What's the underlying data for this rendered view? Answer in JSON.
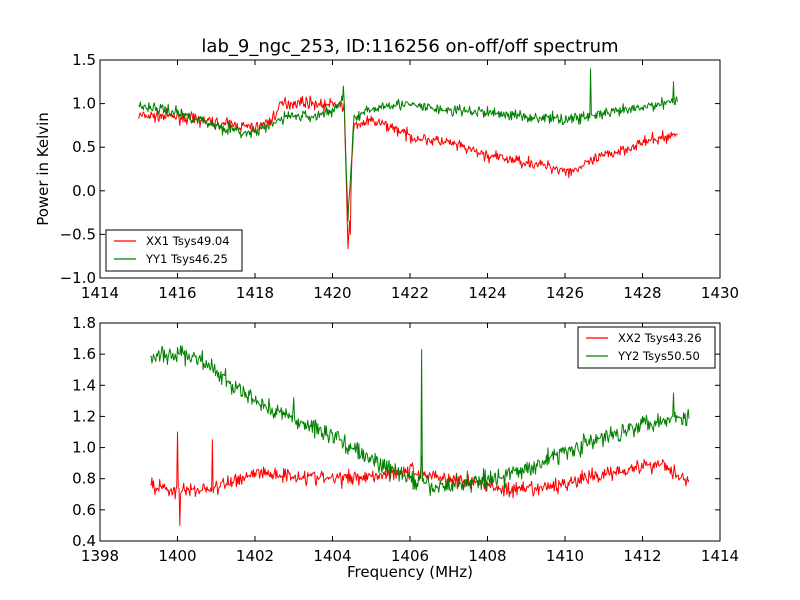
{
  "chart_data": [
    {
      "type": "line",
      "title": "lab_9_ngc_253, ID:116256 on-off/off spectrum",
      "xlabel": "",
      "ylabel": "Power in Kelvin",
      "xlim": [
        1414,
        1430
      ],
      "ylim": [
        -1.0,
        1.5
      ],
      "xticks": [
        1414,
        1416,
        1418,
        1420,
        1422,
        1424,
        1426,
        1428,
        1430
      ],
      "yticks": [
        -1.0,
        -0.5,
        0.0,
        0.5,
        1.0,
        1.5
      ],
      "xtick_labels": [
        "1414",
        "1416",
        "1418",
        "1420",
        "1422",
        "1424",
        "1426",
        "1428",
        "1430"
      ],
      "ytick_labels": [
        "−1.0",
        "−0.5",
        "0.0",
        "0.5",
        "1.0",
        "1.5"
      ],
      "grid": false,
      "legend_position": "bottom-left",
      "x_range": [
        1415.0,
        1428.9
      ],
      "series": [
        {
          "name": "XX1 Tsys49.04",
          "color": "#ff0000",
          "noise": 0.06,
          "anchors": [
            [
              1415.0,
              0.86
            ],
            [
              1416.0,
              0.85
            ],
            [
              1417.0,
              0.78
            ],
            [
              1418.0,
              0.72
            ],
            [
              1418.4,
              0.8
            ],
            [
              1418.7,
              1.0
            ],
            [
              1419.3,
              1.02
            ],
            [
              1419.8,
              0.98
            ],
            [
              1420.15,
              1.0
            ],
            [
              1420.3,
              0.95
            ],
            [
              1420.4,
              -0.65
            ],
            [
              1420.55,
              0.75
            ],
            [
              1421.0,
              0.8
            ],
            [
              1421.6,
              0.72
            ],
            [
              1422.0,
              0.62
            ],
            [
              1423.0,
              0.55
            ],
            [
              1424.0,
              0.4
            ],
            [
              1425.0,
              0.33
            ],
            [
              1426.0,
              0.24
            ],
            [
              1426.3,
              0.25
            ],
            [
              1427.0,
              0.4
            ],
            [
              1428.0,
              0.55
            ],
            [
              1428.9,
              0.65
            ]
          ],
          "spikes": [
            [
              1420.45,
              -0.5
            ],
            [
              1426.1,
              0.15
            ]
          ]
        },
        {
          "name": "YY1 Tsys46.25",
          "color": "#008000",
          "noise": 0.06,
          "anchors": [
            [
              1415.0,
              0.98
            ],
            [
              1416.0,
              0.9
            ],
            [
              1417.0,
              0.75
            ],
            [
              1417.8,
              0.65
            ],
            [
              1418.3,
              0.72
            ],
            [
              1418.8,
              0.86
            ],
            [
              1419.5,
              0.85
            ],
            [
              1420.0,
              0.92
            ],
            [
              1420.3,
              1.05
            ],
            [
              1420.4,
              -0.3
            ],
            [
              1420.55,
              0.82
            ],
            [
              1421.0,
              0.93
            ],
            [
              1421.5,
              1.0
            ],
            [
              1422.0,
              0.98
            ],
            [
              1423.0,
              0.92
            ],
            [
              1424.0,
              0.9
            ],
            [
              1425.0,
              0.85
            ],
            [
              1426.0,
              0.82
            ],
            [
              1427.0,
              0.88
            ],
            [
              1428.0,
              0.95
            ],
            [
              1428.9,
              1.05
            ]
          ],
          "spikes": [
            [
              1420.28,
              1.2
            ],
            [
              1426.65,
              1.4
            ],
            [
              1428.8,
              1.25
            ]
          ]
        }
      ]
    },
    {
      "type": "line",
      "title": "",
      "xlabel": "Frequency (MHz)",
      "ylabel": "",
      "xlim": [
        1398,
        1414
      ],
      "ylim": [
        0.4,
        1.8
      ],
      "xticks": [
        1398,
        1400,
        1402,
        1404,
        1406,
        1408,
        1410,
        1412,
        1414
      ],
      "yticks": [
        0.4,
        0.6,
        0.8,
        1.0,
        1.2,
        1.4,
        1.6,
        1.8
      ],
      "xtick_labels": [
        "1398",
        "1400",
        "1402",
        "1404",
        "1406",
        "1408",
        "1410",
        "1412",
        "1414"
      ],
      "ytick_labels": [
        "0.4",
        "0.6",
        "0.8",
        "1.0",
        "1.2",
        "1.4",
        "1.6",
        "1.8"
      ],
      "grid": false,
      "legend_position": "top-right",
      "x_range": [
        1399.3,
        1413.2
      ],
      "series": [
        {
          "name": "XX2 Tsys43.26",
          "color": "#ff0000",
          "noise": 0.045,
          "anchors": [
            [
              1399.3,
              0.76
            ],
            [
              1400.0,
              0.72
            ],
            [
              1401.0,
              0.74
            ],
            [
              1402.0,
              0.84
            ],
            [
              1403.0,
              0.82
            ],
            [
              1404.0,
              0.8
            ],
            [
              1405.0,
              0.82
            ],
            [
              1406.0,
              0.85
            ],
            [
              1407.0,
              0.8
            ],
            [
              1408.0,
              0.76
            ],
            [
              1408.6,
              0.72
            ],
            [
              1409.5,
              0.74
            ],
            [
              1410.5,
              0.8
            ],
            [
              1411.5,
              0.86
            ],
            [
              1412.5,
              0.9
            ],
            [
              1413.2,
              0.78
            ]
          ],
          "spikes": [
            [
              1400.0,
              1.1
            ],
            [
              1400.05,
              0.5
            ],
            [
              1400.9,
              1.05
            ],
            [
              1406.3,
              0.95
            ]
          ]
        },
        {
          "name": "YY2 Tsys50.50",
          "color": "#008000",
          "noise": 0.055,
          "anchors": [
            [
              1399.3,
              1.58
            ],
            [
              1400.0,
              1.6
            ],
            [
              1400.5,
              1.58
            ],
            [
              1401.0,
              1.48
            ],
            [
              1401.5,
              1.38
            ],
            [
              1402.0,
              1.3
            ],
            [
              1403.0,
              1.18
            ],
            [
              1404.0,
              1.08
            ],
            [
              1405.0,
              0.92
            ],
            [
              1406.0,
              0.8
            ],
            [
              1406.6,
              0.74
            ],
            [
              1407.5,
              0.78
            ],
            [
              1408.5,
              0.82
            ],
            [
              1409.0,
              0.86
            ],
            [
              1410.0,
              0.98
            ],
            [
              1411.0,
              1.06
            ],
            [
              1412.0,
              1.16
            ],
            [
              1413.2,
              1.2
            ]
          ],
          "spikes": [
            [
              1406.3,
              1.63
            ],
            [
              1403.0,
              1.32
            ],
            [
              1412.8,
              1.35
            ]
          ]
        }
      ]
    }
  ]
}
